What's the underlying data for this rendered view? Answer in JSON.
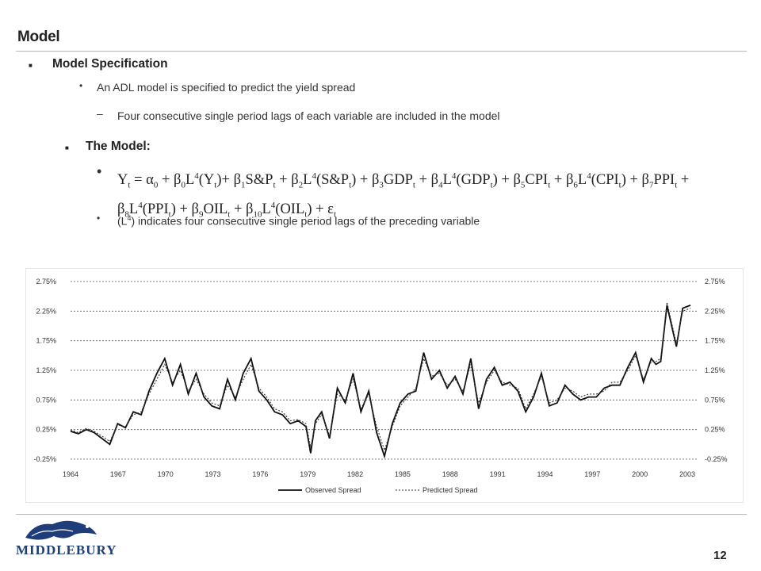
{
  "slide": {
    "title": "Model",
    "page_number": "12",
    "logo_text": "MIDDLEBURY"
  },
  "bullets": {
    "spec_heading": "Model Specification",
    "spec_item": "An ADL model is specified to predict the yield spread",
    "spec_subitem": "Four consecutive single period lags of each variable are included in the model",
    "model_heading": "The Model:",
    "lag_note_prefix": "(L",
    "lag_note_sup": "4",
    "lag_note_suffix": ") indicates four consecutive single period lags of the preceding variable"
  },
  "equation": {
    "text": "Yt = α0 + β0L4(Yt)+ β1S&Pt + β2L4(S&Pt) + β3GDPt + β4L4(GDPt) + β5CPIt + β6L4(CPIt) + β7PPIt + β8L4(PPIt) + β9OILt + β10L4(OILt) + εt"
  },
  "chart_data": {
    "type": "line",
    "y_ticks": [
      "2.75%",
      "2.25%",
      "1.75%",
      "1.25%",
      "0.75%",
      "0.25%",
      "-0.25%"
    ],
    "ylim": [
      -0.25,
      2.75
    ],
    "x_ticks": [
      "1964",
      "1967",
      "1970",
      "1973",
      "1976",
      "1979",
      "1982",
      "1985",
      "1988",
      "1991",
      "1994",
      "1997",
      "2000",
      "2003"
    ],
    "xlim": [
      1964,
      2004
    ],
    "gridlines": "horizontal dashed",
    "dual_y_axis": true,
    "legend_position": "bottom",
    "series": [
      {
        "name": "Observed Spread",
        "style": "solid",
        "color": "#111111",
        "x": [
          1964.0,
          1964.5,
          1965.0,
          1965.5,
          1966.0,
          1966.5,
          1967.0,
          1967.5,
          1968.0,
          1968.5,
          1969.0,
          1969.5,
          1970.0,
          1970.5,
          1971.0,
          1971.5,
          1972.0,
          1972.5,
          1973.0,
          1973.5,
          1974.0,
          1974.5,
          1975.0,
          1975.5,
          1976.0,
          1976.5,
          1977.0,
          1977.5,
          1978.0,
          1978.5,
          1979.0,
          1979.3,
          1979.6,
          1980.0,
          1980.5,
          1981.0,
          1981.5,
          1982.0,
          1982.5,
          1983.0,
          1983.5,
          1984.0,
          1984.5,
          1985.0,
          1985.5,
          1986.0,
          1986.5,
          1987.0,
          1987.5,
          1988.0,
          1988.5,
          1989.0,
          1989.5,
          1990.0,
          1990.5,
          1991.0,
          1991.5,
          1992.0,
          1992.5,
          1993.0,
          1993.5,
          1994.0,
          1994.5,
          1995.0,
          1995.5,
          1996.0,
          1996.5,
          1997.0,
          1997.5,
          1998.0,
          1998.5,
          1999.0,
          1999.5,
          2000.0,
          2000.5,
          2001.0,
          2001.3,
          2001.6,
          2002.0,
          2002.3,
          2002.6,
          2003.0,
          2003.5
        ],
        "values": [
          0.22,
          0.18,
          0.25,
          0.2,
          0.1,
          0.0,
          0.35,
          0.28,
          0.55,
          0.5,
          0.9,
          1.2,
          1.45,
          1.0,
          1.35,
          0.85,
          1.2,
          0.8,
          0.65,
          0.6,
          1.1,
          0.75,
          1.2,
          1.45,
          0.9,
          0.75,
          0.55,
          0.5,
          0.35,
          0.4,
          0.3,
          -0.15,
          0.4,
          0.55,
          0.1,
          0.95,
          0.7,
          1.2,
          0.55,
          0.9,
          0.2,
          -0.2,
          0.35,
          0.7,
          0.85,
          0.9,
          1.55,
          1.1,
          1.25,
          0.95,
          1.15,
          0.85,
          1.45,
          0.6,
          1.1,
          1.3,
          1.0,
          1.05,
          0.9,
          0.55,
          0.8,
          1.2,
          0.65,
          0.7,
          1.0,
          0.85,
          0.75,
          0.8,
          0.8,
          0.95,
          1.0,
          1.0,
          1.3,
          1.55,
          1.05,
          1.45,
          1.35,
          1.4,
          2.35,
          2.0,
          1.65,
          2.3,
          2.35
        ]
      },
      {
        "name": "Predicted Spread",
        "style": "dotted",
        "color": "#333333",
        "x": [
          1964.0,
          1964.5,
          1965.0,
          1965.5,
          1966.0,
          1966.5,
          1967.0,
          1967.5,
          1968.0,
          1968.5,
          1969.0,
          1969.5,
          1970.0,
          1970.5,
          1971.0,
          1971.5,
          1972.0,
          1972.5,
          1973.0,
          1973.5,
          1974.0,
          1974.5,
          1975.0,
          1975.5,
          1976.0,
          1976.5,
          1977.0,
          1977.5,
          1978.0,
          1978.5,
          1979.0,
          1979.3,
          1979.6,
          1980.0,
          1980.5,
          1981.0,
          1981.5,
          1982.0,
          1982.5,
          1983.0,
          1983.5,
          1984.0,
          1984.5,
          1985.0,
          1985.5,
          1986.0,
          1986.5,
          1987.0,
          1987.5,
          1988.0,
          1988.5,
          1989.0,
          1989.5,
          1990.0,
          1990.5,
          1991.0,
          1991.5,
          1992.0,
          1992.5,
          1993.0,
          1993.5,
          1994.0,
          1994.5,
          1995.0,
          1995.5,
          1996.0,
          1996.5,
          1997.0,
          1997.5,
          1998.0,
          1998.5,
          1999.0,
          1999.5,
          2000.0,
          2000.5,
          2001.0,
          2001.3,
          2001.6,
          2002.0,
          2002.3,
          2002.6,
          2003.0,
          2003.5
        ],
        "values": [
          0.24,
          0.2,
          0.27,
          0.22,
          0.14,
          0.05,
          0.33,
          0.3,
          0.5,
          0.55,
          0.85,
          1.1,
          1.35,
          1.05,
          1.25,
          0.9,
          1.1,
          0.85,
          0.7,
          0.65,
          1.0,
          0.8,
          1.1,
          1.35,
          0.95,
          0.8,
          0.6,
          0.55,
          0.4,
          0.42,
          0.35,
          -0.05,
          0.35,
          0.5,
          0.15,
          0.85,
          0.75,
          1.1,
          0.6,
          0.85,
          0.3,
          -0.1,
          0.3,
          0.65,
          0.8,
          0.95,
          1.45,
          1.15,
          1.2,
          1.0,
          1.1,
          0.9,
          1.35,
          0.7,
          1.05,
          1.25,
          1.05,
          1.0,
          0.95,
          0.6,
          0.85,
          1.15,
          0.7,
          0.75,
          0.95,
          0.9,
          0.8,
          0.85,
          0.85,
          0.9,
          1.05,
          1.05,
          1.25,
          1.5,
          1.1,
          1.4,
          1.4,
          1.45,
          2.4,
          2.05,
          1.7,
          2.25,
          2.3
        ]
      }
    ]
  }
}
